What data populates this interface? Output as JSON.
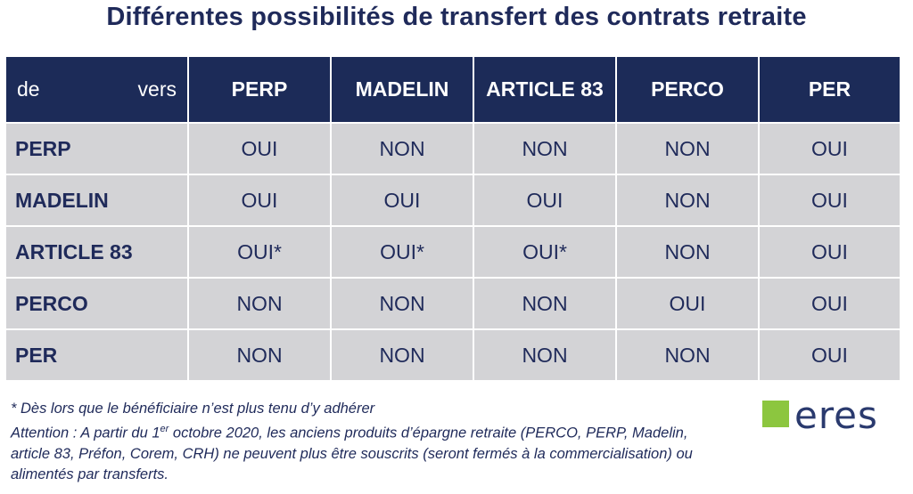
{
  "title": "Différentes possibilités de transfert des contrats retraite",
  "table": {
    "corner_from": "de",
    "corner_to": "vers",
    "columns": [
      "PERP",
      "MADELIN",
      "ARTICLE 83",
      "PERCO",
      "PER"
    ],
    "rows": [
      {
        "label": "PERP",
        "cells": [
          "OUI",
          "NON",
          "NON",
          "NON",
          "OUI"
        ]
      },
      {
        "label": "MADELIN",
        "cells": [
          "OUI",
          "OUI",
          "OUI",
          "NON",
          "OUI"
        ]
      },
      {
        "label": "ARTICLE 83",
        "cells": [
          "OUI*",
          "OUI*",
          "OUI*",
          "NON",
          "OUI"
        ]
      },
      {
        "label": "PERCO",
        "cells": [
          "NON",
          "NON",
          "NON",
          "OUI",
          "OUI"
        ]
      },
      {
        "label": "PER",
        "cells": [
          "NON",
          "NON",
          "NON",
          "NON",
          "OUI"
        ]
      }
    ]
  },
  "footnotes": {
    "asterisk_note": "* Dès lors que le bénéficiaire n’est plus tenu d’y adhérer",
    "attention_before_sup": " Attention : A partir du 1",
    "attention_sup": "er",
    "attention_after_sup": " octobre 2020, les anciens produits d’épargne retraite (PERCO, PERP, Madelin, article 83, Préfon, Corem, CRH) ne peuvent plus être souscrits (seront fermés à la commercialisation) ou alimentés par transferts."
  },
  "logo": {
    "text": "eres",
    "square_color": "#8cc63f"
  },
  "colors": {
    "header_bg": "#1c2b58",
    "cell_bg": "#d3d3d6",
    "text_navy": "#1f2a5a"
  }
}
